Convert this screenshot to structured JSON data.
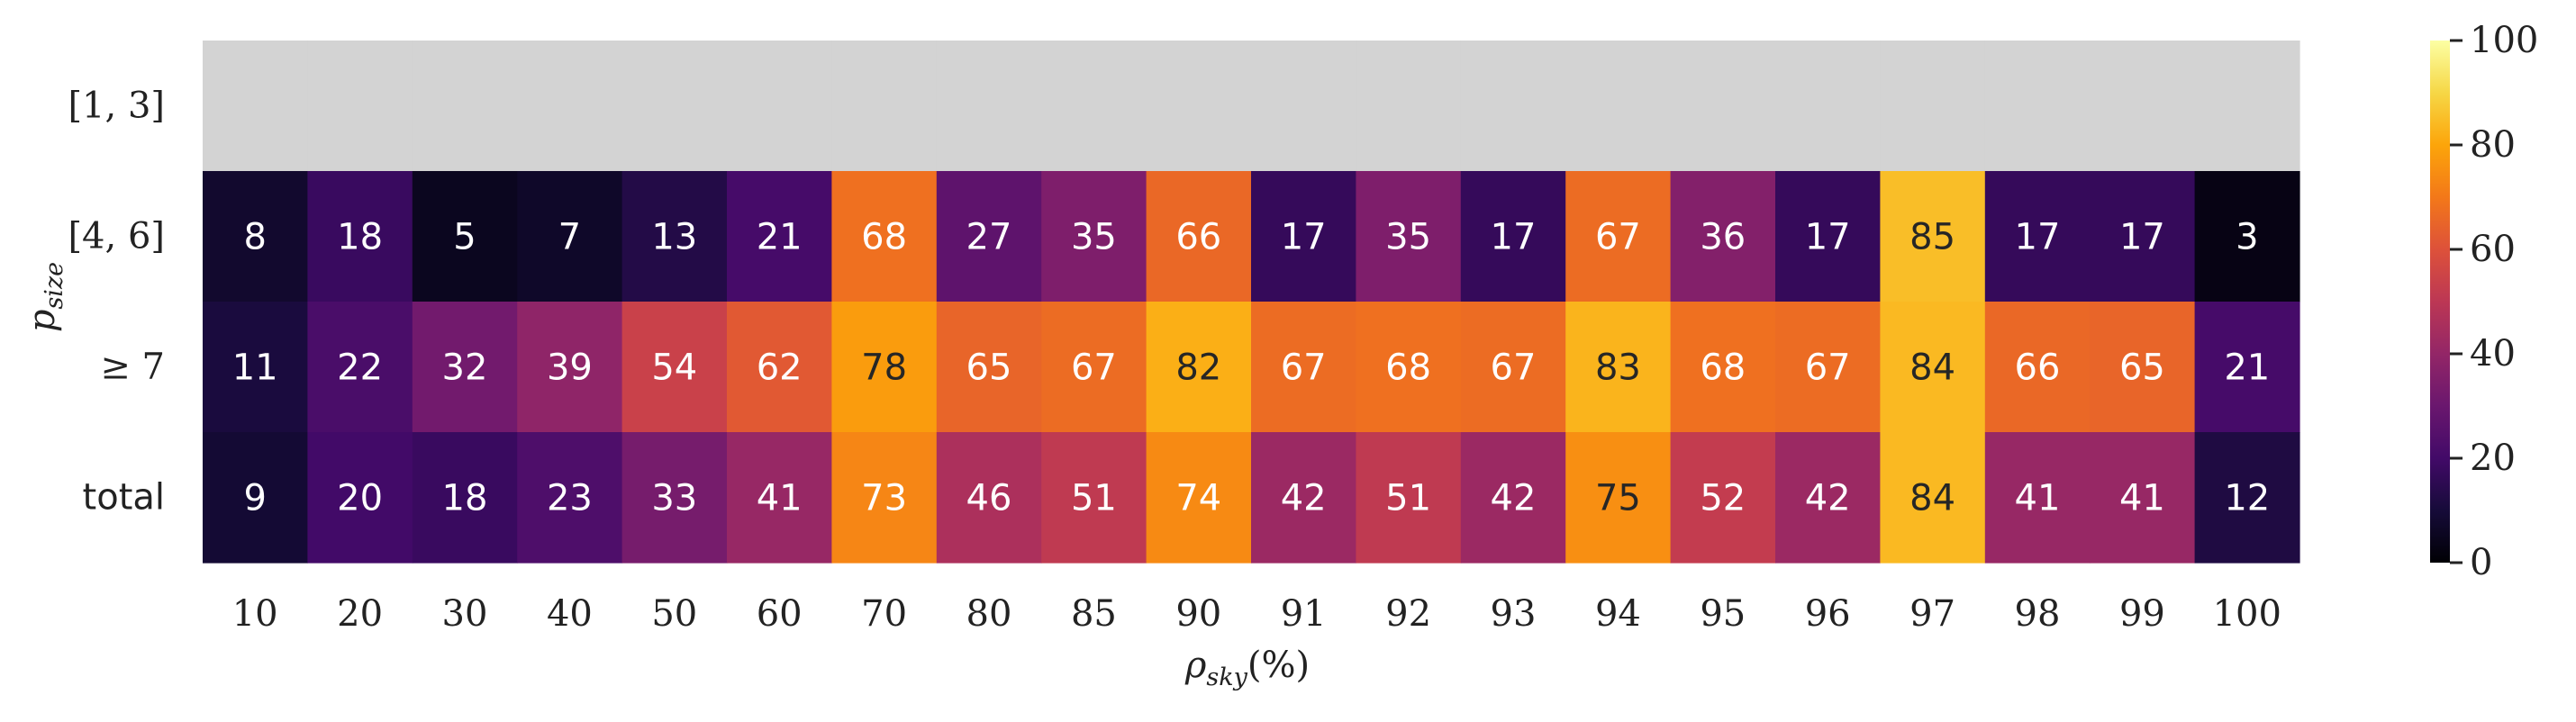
{
  "chart_data": {
    "type": "heatmap",
    "xlabel": "ρsky(%)",
    "xlabel_main": "ρ",
    "xlabel_sub": "sky",
    "xlabel_unit": "(%)",
    "ylabel_main": "p",
    "ylabel_sub": "size",
    "x_categories": [
      "10",
      "20",
      "30",
      "40",
      "50",
      "60",
      "70",
      "80",
      "85",
      "90",
      "91",
      "92",
      "93",
      "94",
      "95",
      "96",
      "97",
      "98",
      "99",
      "100"
    ],
    "y_categories": [
      "[1, 3]",
      "[4, 6]",
      "≥ 7",
      "total"
    ],
    "values": [
      [
        null,
        null,
        null,
        null,
        null,
        null,
        null,
        null,
        null,
        null,
        null,
        null,
        null,
        null,
        null,
        null,
        null,
        null,
        null,
        null
      ],
      [
        8,
        18,
        5,
        7,
        13,
        21,
        68,
        27,
        35,
        66,
        17,
        35,
        17,
        67,
        36,
        17,
        85,
        17,
        17,
        3
      ],
      [
        11,
        22,
        32,
        39,
        54,
        62,
        78,
        65,
        67,
        82,
        67,
        68,
        67,
        83,
        68,
        67,
        84,
        66,
        65,
        21
      ],
      [
        9,
        20,
        18,
        23,
        33,
        41,
        73,
        46,
        51,
        74,
        42,
        51,
        42,
        75,
        52,
        42,
        84,
        41,
        41,
        12
      ]
    ],
    "missing_color": "#d3d3d3",
    "colormap": "inferno",
    "colorbar": {
      "range": [
        0,
        100
      ],
      "ticks": [
        "0",
        "20",
        "40",
        "60",
        "80",
        "100"
      ]
    }
  }
}
